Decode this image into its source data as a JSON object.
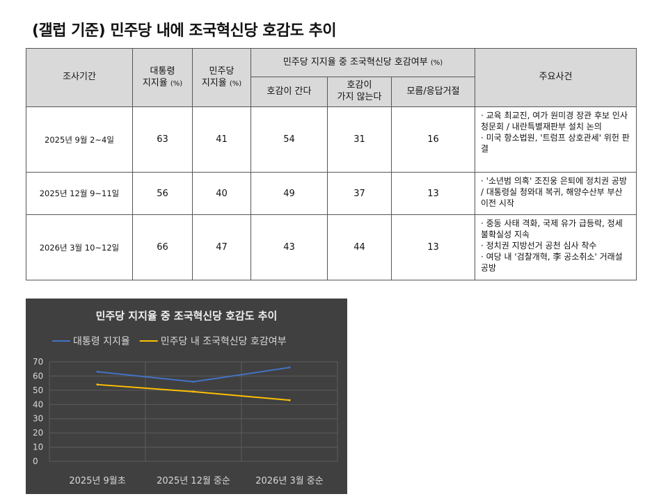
{
  "title": "(갤럽 기준) 민주당 내에 조국혁신당 호감도 추이",
  "table": {
    "headers": {
      "period": "조사기간",
      "pres_line1": "대통령",
      "pres_line2": "지지율",
      "party_line1": "민주당",
      "party_line2": "지지율",
      "unit": "(%)",
      "group": "민주당 지지율 중 조국혁신당 호감여부",
      "favorable": "호감이 간다",
      "unfav_line1": "호감이",
      "unfav_line2": "가지 않는다",
      "unknown": "모름/응답거절",
      "events": "주요사건"
    },
    "rows": [
      {
        "period": "2025년 9월 2~4일",
        "pres": "63",
        "party": "41",
        "favorable": "54",
        "unfavorable": "31",
        "unknown": "16",
        "events": [
          "· 교육 최교진, 여가 원미경 장관 후보 인사청문회 / 내란특별재판부 설치 논의",
          "· 미국 항소법원, '트럼프 상호관세' 위헌 판결"
        ]
      },
      {
        "period": "2025년 12월 9~11일",
        "pres": "56",
        "party": "40",
        "favorable": "49",
        "unfavorable": "37",
        "unknown": "13",
        "events": [
          "· '소년범 의혹' 조진웅 은퇴에 정치권 공방 / 대통령실 청와대 복귀, 해양수산부 부산 이전 시작"
        ]
      },
      {
        "period": "2026년 3월 10~12일",
        "pres": "66",
        "party": "47",
        "favorable": "43",
        "unfavorable": "44",
        "unknown": "13",
        "events": [
          "· 중동 사태 격화, 국제 유가 급등락, 정세 불확실성 지속",
          "· 정치권 지방선거 공천 심사 착수",
          "· 여당 내 '검찰개혁, 李 공소취소' 거래설 공방"
        ]
      }
    ]
  },
  "chart_data": {
    "type": "line",
    "title": "민주당 지지율 중 조국혁신당 호감도 추이",
    "categories": [
      "2025년 9월초",
      "2025년 12월 중순",
      "2026년 3월 중순"
    ],
    "series": [
      {
        "name": "대통령 지지율",
        "values": [
          63,
          56,
          66
        ],
        "color": "#4472c4"
      },
      {
        "name": "민주당 내 조국혁신당 호감여부",
        "values": [
          54,
          49,
          43
        ],
        "color": "#ffc000"
      }
    ],
    "ylim": [
      0,
      70
    ],
    "yticks": [
      0,
      10,
      20,
      30,
      40,
      50,
      60,
      70
    ],
    "grid": true,
    "legend": "top",
    "background": "#404040"
  }
}
